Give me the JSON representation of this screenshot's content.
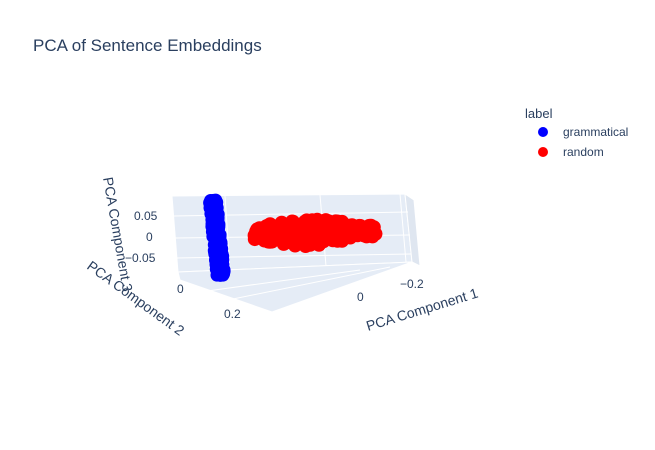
{
  "chart_data": {
    "type": "scatter",
    "title": "PCA of Sentence Embeddings",
    "projection": "3d",
    "axes": {
      "x": {
        "label": "PCA Component 1",
        "ticks": [
          "−0.2",
          "0"
        ]
      },
      "y": {
        "label": "PCA Component 2",
        "ticks": [
          "0",
          "0.2"
        ]
      },
      "z": {
        "label": "PCA Component 3",
        "ticks": [
          "0.05",
          "0",
          "−0.05"
        ]
      }
    },
    "legend": {
      "title": "label",
      "placement": "top-right",
      "entries": [
        {
          "name": "grammatical",
          "color": "#0000ff"
        },
        {
          "name": "random",
          "color": "#ff0000"
        }
      ]
    },
    "series": [
      {
        "name": "grammatical",
        "color": "#0000ff",
        "note": "tight vertical cluster at PCA Component 1 ≈ −0.15, spanning PCA Component 3 ≈ −0.07 to 0.07"
      },
      {
        "name": "random",
        "color": "#ff0000",
        "note": "horizontal cluster at PCA Component 3 ≈ 0, spread along PCA Component 1"
      }
    ],
    "grid": true,
    "scene_background": "#e5ecf6"
  }
}
